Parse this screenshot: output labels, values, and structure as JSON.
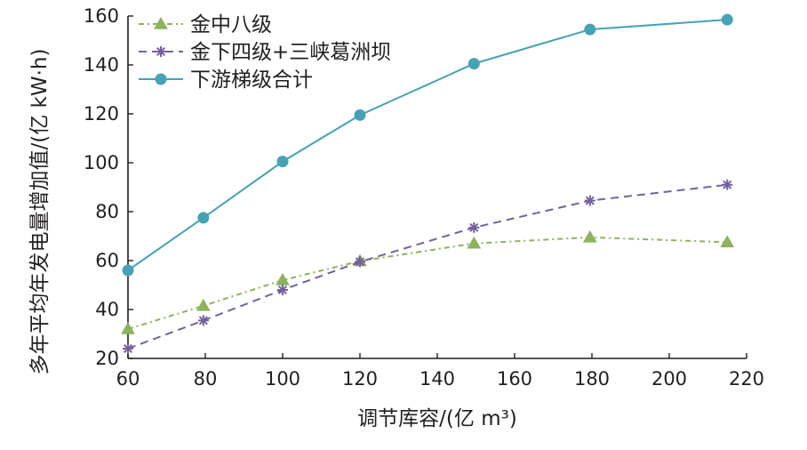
{
  "chart_data": {
    "type": "line",
    "title": "",
    "xlabel": "调节库容/(亿  m³)",
    "ylabel": "多年平均年发电量增加值/(亿  kW·h)",
    "xlim": [
      60,
      220
    ],
    "ylim": [
      20,
      160
    ],
    "x_ticks": [
      60,
      80,
      100,
      120,
      140,
      160,
      180,
      200,
      220
    ],
    "y_ticks": [
      20,
      40,
      60,
      80,
      100,
      120,
      140,
      160
    ],
    "grid": false,
    "legend_position": "top-left",
    "x": [
      60,
      79.5,
      100,
      120,
      149.5,
      179.5,
      215
    ],
    "series": [
      {
        "name": "金中八级",
        "values": [
          32,
          41.5,
          52,
          59.8,
          67,
          69.5,
          67.5
        ],
        "color": "#8db35c",
        "line_style": "dash-dot",
        "marker": "triangle"
      },
      {
        "name": "金下四级+三峡葛洲坝",
        "values": [
          24,
          35.5,
          48,
          59.5,
          73.5,
          84.5,
          91
        ],
        "color": "#7560a0",
        "line_style": "dashed",
        "marker": "asterisk"
      },
      {
        "name": "下游梯级合计",
        "values": [
          56,
          77.5,
          100.5,
          119.5,
          140.5,
          154.5,
          158.5
        ],
        "color": "#45a3b5",
        "line_style": "solid",
        "marker": "circle"
      }
    ]
  }
}
